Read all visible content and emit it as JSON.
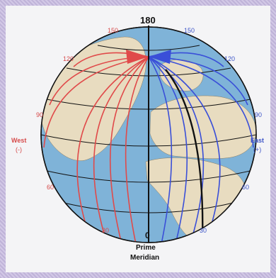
{
  "top_label": "180",
  "bottom_label": "0",
  "meridian_caption": {
    "line1": "Prime",
    "line2": "Meridian"
  },
  "west": {
    "title": "West",
    "sign": "(-)",
    "ticks": [
      "150",
      "120",
      "90",
      "60",
      "30"
    ]
  },
  "east": {
    "title": "East",
    "sign": "(+)",
    "ticks": [
      "150",
      "120",
      "90",
      "60",
      "30"
    ]
  },
  "colors": {
    "west_lines": "#e04a4a",
    "east_lines": "#3a4fd8",
    "ocean": "#7fb3d8",
    "land": "#e8dcc0",
    "grid": "#111111",
    "background": "#c9bfe0"
  }
}
